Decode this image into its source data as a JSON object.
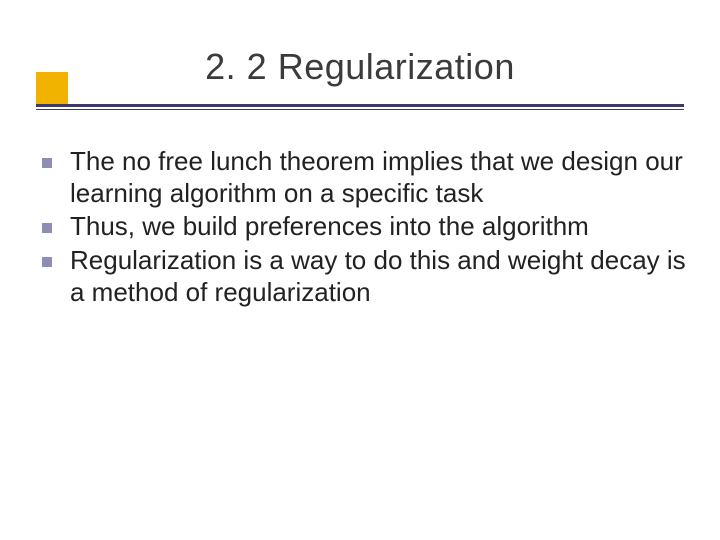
{
  "title": "2. 2 Regularization",
  "bullets": [
    "The no free lunch theorem implies that we design our learning algorithm on a specific task",
    "Thus, we build preferences into the algorithm",
    "Regularization is a way to do this and weight decay is a method of regularization"
  ],
  "colors": {
    "background": "#ffffff",
    "title_text": "#3b3b3b",
    "body_text": "#222222",
    "accent_square": "#f2b200",
    "underline": "#3b3b6b",
    "bullet_marker": "#8d8db5"
  },
  "typography": {
    "title_fontsize": 36,
    "body_fontsize": 26,
    "font_family": "Verdana"
  },
  "layout": {
    "slide_width": 720,
    "slide_height": 540
  }
}
